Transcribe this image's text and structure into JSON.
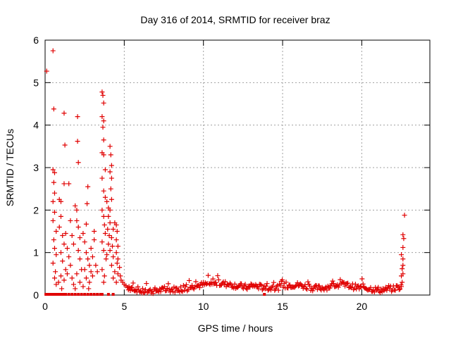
{
  "chart_data": {
    "type": "scatter",
    "title": "Day 316 of 2014, SRMTID for receiver braz",
    "xlabel": "GPS time / hours",
    "ylabel": "SRMTID / TECUs",
    "xlim": [
      0,
      24.3
    ],
    "ylim": [
      0,
      6
    ],
    "xticks": [
      0,
      5,
      10,
      15,
      20
    ],
    "yticks": [
      0,
      1,
      2,
      3,
      4,
      5,
      6
    ],
    "grid": true,
    "marker": "+",
    "series": [
      {
        "name": "SRMTID",
        "color": "#e00000",
        "points": [
          [
            0.1,
            5.27
          ],
          [
            0.5,
            5.75
          ],
          [
            0.55,
            4.38
          ],
          [
            0.5,
            2.95
          ],
          [
            0.6,
            2.88
          ],
          [
            0.55,
            2.65
          ],
          [
            0.6,
            2.4
          ],
          [
            0.5,
            2.2
          ],
          [
            0.6,
            1.95
          ],
          [
            0.5,
            1.75
          ],
          [
            0.7,
            1.5
          ],
          [
            0.55,
            1.3
          ],
          [
            0.6,
            1.1
          ],
          [
            0.7,
            0.95
          ],
          [
            0.5,
            0.75
          ],
          [
            0.65,
            0.55
          ],
          [
            0.6,
            0.4
          ],
          [
            0.7,
            0.25
          ],
          [
            0.9,
            2.25
          ],
          [
            1.0,
            2.2
          ],
          [
            1.0,
            1.85
          ],
          [
            0.9,
            1.6
          ],
          [
            1.1,
            1.4
          ],
          [
            1.2,
            1.2
          ],
          [
            1.0,
            1.0
          ],
          [
            1.1,
            0.8
          ],
          [
            1.3,
            0.6
          ],
          [
            1.0,
            0.45
          ],
          [
            1.2,
            0.35
          ],
          [
            1.4,
            0.5
          ],
          [
            0.85,
            0.3
          ],
          [
            1.05,
            0.15
          ],
          [
            1.2,
            4.28
          ],
          [
            1.25,
            3.53
          ],
          [
            1.2,
            2.62
          ],
          [
            1.5,
            2.62
          ],
          [
            1.3,
            1.45
          ],
          [
            1.4,
            1.1
          ],
          [
            1.5,
            0.9
          ],
          [
            1.6,
            1.75
          ],
          [
            1.7,
            1.4
          ],
          [
            1.8,
            1.2
          ],
          [
            1.6,
            0.7
          ],
          [
            1.7,
            0.4
          ],
          [
            1.8,
            0.25
          ],
          [
            1.9,
            0.15
          ],
          [
            2.05,
            4.2
          ],
          [
            2.05,
            3.62
          ],
          [
            2.1,
            3.12
          ],
          [
            1.9,
            2.1
          ],
          [
            2.0,
            2.0
          ],
          [
            2.0,
            1.75
          ],
          [
            2.1,
            1.6
          ],
          [
            2.2,
            1.35
          ],
          [
            2.1,
            1.05
          ],
          [
            2.2,
            0.85
          ],
          [
            2.3,
            0.6
          ],
          [
            2.0,
            0.5
          ],
          [
            2.2,
            0.3
          ],
          [
            2.4,
            0.2
          ],
          [
            2.7,
            2.55
          ],
          [
            2.65,
            2.15
          ],
          [
            2.6,
            1.67
          ],
          [
            2.4,
            1.45
          ],
          [
            2.5,
            1.25
          ],
          [
            2.6,
            1.0
          ],
          [
            2.7,
            0.85
          ],
          [
            2.8,
            0.7
          ],
          [
            2.5,
            0.6
          ],
          [
            2.9,
            0.55
          ],
          [
            2.6,
            0.4
          ],
          [
            2.8,
            0.3
          ],
          [
            3.0,
            0.45
          ],
          [
            2.9,
            1.1
          ],
          [
            3.1,
            1.5
          ],
          [
            3.1,
            1.3
          ],
          [
            3.0,
            0.9
          ],
          [
            3.2,
            0.7
          ],
          [
            3.3,
            0.55
          ],
          [
            2.75,
            0.15
          ],
          [
            3.6,
            4.78
          ],
          [
            3.65,
            4.7
          ],
          [
            3.7,
            4.52
          ],
          [
            3.6,
            4.2
          ],
          [
            3.7,
            4.1
          ],
          [
            3.65,
            3.95
          ],
          [
            3.7,
            3.65
          ],
          [
            3.6,
            3.35
          ],
          [
            3.7,
            3.3
          ],
          [
            3.8,
            2.95
          ],
          [
            3.6,
            2.75
          ],
          [
            3.7,
            2.45
          ],
          [
            3.8,
            2.3
          ],
          [
            3.6,
            2.0
          ],
          [
            3.7,
            1.85
          ],
          [
            3.75,
            1.65
          ],
          [
            3.8,
            1.45
          ],
          [
            3.6,
            1.25
          ],
          [
            3.7,
            1.05
          ],
          [
            3.85,
            0.85
          ],
          [
            3.6,
            0.6
          ],
          [
            3.75,
            0.45
          ],
          [
            3.7,
            0.3
          ],
          [
            3.9,
            2.2
          ],
          [
            4.0,
            2.05
          ],
          [
            4.0,
            1.85
          ],
          [
            4.1,
            1.7
          ],
          [
            3.95,
            1.55
          ],
          [
            4.05,
            1.4
          ],
          [
            4.0,
            1.2
          ],
          [
            4.1,
            1.05
          ],
          [
            3.9,
            0.95
          ],
          [
            4.1,
            3.5
          ],
          [
            4.15,
            3.3
          ],
          [
            4.2,
            3.05
          ],
          [
            4.1,
            2.9
          ],
          [
            4.2,
            2.75
          ],
          [
            4.15,
            2.5
          ],
          [
            4.2,
            2.25
          ],
          [
            4.1,
            2.0
          ],
          [
            4.3,
            1.55
          ],
          [
            4.2,
            1.35
          ],
          [
            4.25,
            1.15
          ],
          [
            4.3,
            0.9
          ],
          [
            4.2,
            0.7
          ],
          [
            4.4,
            0.55
          ],
          [
            4.3,
            0.4
          ],
          [
            4.5,
            0.3
          ],
          [
            4.4,
            1.7
          ],
          [
            4.5,
            1.65
          ],
          [
            4.55,
            1.5
          ],
          [
            4.5,
            1.3
          ],
          [
            4.6,
            1.15
          ],
          [
            4.5,
            1.0
          ],
          [
            4.6,
            0.85
          ],
          [
            4.55,
            0.75
          ],
          [
            4.7,
            0.65
          ],
          [
            4.6,
            0.5
          ],
          [
            4.75,
            0.45
          ],
          [
            4.8,
            0.35
          ],
          [
            4.9,
            0.3
          ],
          [
            5.0,
            0.25
          ],
          [
            5.1,
            0.22
          ],
          [
            5.3,
            0.2
          ],
          [
            5.5,
            0.18
          ],
          [
            22.5,
            0.2
          ],
          [
            22.55,
            0.3
          ],
          [
            22.5,
            0.45
          ],
          [
            22.6,
            0.5
          ],
          [
            22.55,
            0.62
          ],
          [
            22.6,
            0.7
          ],
          [
            22.6,
            0.85
          ],
          [
            22.5,
            0.95
          ],
          [
            22.6,
            1.12
          ],
          [
            22.65,
            1.33
          ],
          [
            22.6,
            1.42
          ],
          [
            22.7,
            1.88
          ]
        ],
        "zero_points": [
          0.05,
          0.1,
          0.15,
          0.2,
          0.25,
          0.3,
          0.35,
          0.4,
          0.45,
          0.5,
          0.55,
          0.6,
          0.7,
          0.8,
          0.9,
          1.0,
          1.1,
          1.2,
          1.3,
          1.5,
          1.7,
          1.9,
          2.1,
          2.3,
          2.5,
          2.7,
          2.9,
          3.1,
          3.3,
          3.5,
          3.6,
          4.0,
          4.3,
          13.85
        ]
      }
    ]
  }
}
